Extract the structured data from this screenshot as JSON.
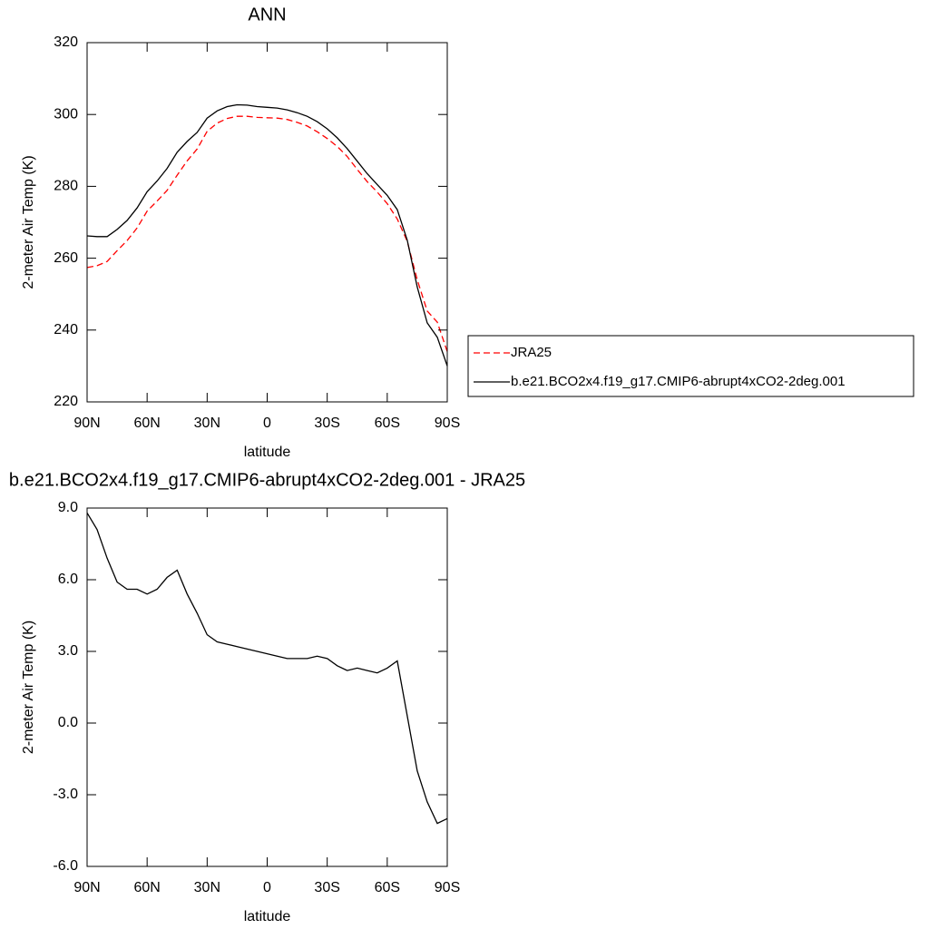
{
  "chart_data": [
    {
      "type": "line",
      "title": "ANN",
      "xlabel": "latitude",
      "ylabel": "2-meter Air Temp (K)",
      "x": [
        90,
        85,
        80,
        75,
        70,
        65,
        60,
        55,
        50,
        45,
        40,
        35,
        30,
        25,
        20,
        15,
        10,
        5,
        0,
        -5,
        -10,
        -15,
        -20,
        -25,
        -30,
        -35,
        -40,
        -45,
        -50,
        -55,
        -60,
        -65,
        -70,
        -75,
        -80,
        -85,
        -90
      ],
      "series": [
        {
          "name": "JRA25",
          "color": "#ff0000",
          "dash": true,
          "values": [
            257.4,
            257.9,
            259.1,
            262.1,
            264.9,
            268.4,
            273.1,
            275.9,
            278.9,
            283.1,
            287.1,
            290.4,
            295.3,
            297.6,
            298.9,
            299.5,
            299.5,
            299.2,
            299.1,
            299.0,
            298.6,
            297.8,
            296.8,
            295.2,
            293.3,
            291.1,
            288.3,
            284.7,
            281.3,
            278.4,
            275.2,
            270.9,
            264.7,
            254.0,
            245.3,
            242.2,
            234.0
          ]
        },
        {
          "name": "b.e21.BCO2x4.f19_g17.CMIP6-abrupt4xCO2-2deg.001",
          "color": "#000000",
          "dash": false,
          "values": [
            266.2,
            266.0,
            266.0,
            268.0,
            270.5,
            274.0,
            278.5,
            281.5,
            285.0,
            289.5,
            292.5,
            295.0,
            299.0,
            301.0,
            302.2,
            302.7,
            302.6,
            302.2,
            302.0,
            301.8,
            301.3,
            300.5,
            299.5,
            298.0,
            296.0,
            293.5,
            290.5,
            287.0,
            283.5,
            280.5,
            277.5,
            273.5,
            265.0,
            252.0,
            242.0,
            238.0,
            230.0
          ]
        }
      ],
      "xlim": [
        90,
        -90
      ],
      "xticks": [
        {
          "value": 90,
          "label": "90N"
        },
        {
          "value": 60,
          "label": "60N"
        },
        {
          "value": 30,
          "label": "30N"
        },
        0,
        {
          "value": -30,
          "label": "30S"
        },
        {
          "value": -60,
          "label": "60S"
        },
        {
          "value": -90,
          "label": "90S"
        }
      ],
      "ylim": [
        220,
        320
      ],
      "yticks": [
        220,
        240,
        260,
        280,
        300,
        320
      ]
    },
    {
      "type": "line",
      "title": "b.e21.BCO2x4.f19_g17.CMIP6-abrupt4xCO2-2deg.001 - JRA25",
      "xlabel": "latitude",
      "ylabel": "2-meter Air Temp (K)",
      "x": [
        90,
        85,
        80,
        75,
        70,
        65,
        60,
        55,
        50,
        45,
        40,
        35,
        30,
        25,
        20,
        15,
        10,
        5,
        0,
        -5,
        -10,
        -15,
        -20,
        -25,
        -30,
        -35,
        -40,
        -45,
        -50,
        -55,
        -60,
        -65,
        -70,
        -75,
        -80,
        -85,
        -90
      ],
      "color": "#000000",
      "values": [
        8.8,
        8.1,
        6.9,
        5.9,
        5.6,
        5.6,
        5.4,
        5.6,
        6.1,
        6.4,
        5.4,
        4.6,
        3.7,
        3.4,
        3.3,
        3.2,
        3.1,
        3.0,
        2.9,
        2.8,
        2.7,
        2.7,
        2.7,
        2.8,
        2.7,
        2.4,
        2.2,
        2.3,
        2.2,
        2.1,
        2.3,
        2.6,
        0.3,
        -2.0,
        -3.3,
        -4.2,
        -4.0
      ],
      "xlim": [
        90,
        -90
      ],
      "xticks": [
        {
          "value": 90,
          "label": "90N"
        },
        {
          "value": 60,
          "label": "60N"
        },
        {
          "value": 30,
          "label": "30N"
        },
        0,
        {
          "value": -30,
          "label": "30S"
        },
        {
          "value": -60,
          "label": "60S"
        },
        {
          "value": -90,
          "label": "90S"
        }
      ],
      "ylim": [
        -6,
        9
      ],
      "yticks": [
        {
          "value": -6,
          "label": "-6.0"
        },
        {
          "value": -3,
          "label": "-3.0"
        },
        {
          "value": 0,
          "label": "0.0"
        },
        {
          "value": 3,
          "label": "3.0"
        },
        {
          "value": 6,
          "label": "6.0"
        },
        {
          "value": 9,
          "label": "9.0"
        }
      ]
    }
  ]
}
